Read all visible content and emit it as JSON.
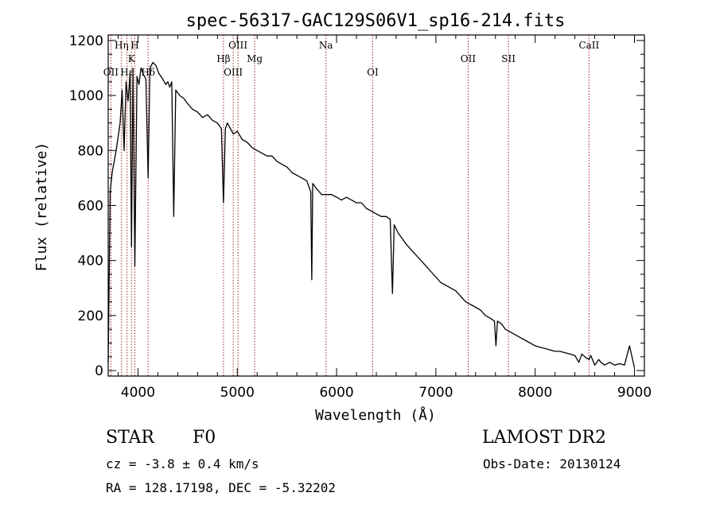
{
  "chart_data": {
    "type": "line",
    "title": "spec-56317-GAC129S06V1_sp16-214.fits",
    "xlabel": "Wavelength (Å)",
    "ylabel": "Flux (relative)",
    "xlim": [
      3700,
      9100
    ],
    "ylim": [
      -20,
      1220
    ],
    "x_ticks": [
      4000,
      5000,
      6000,
      7000,
      8000,
      9000
    ],
    "y_ticks": [
      0,
      200,
      400,
      600,
      800,
      1000,
      1200
    ],
    "line_color": "#000000",
    "marker_color": "#aa2222",
    "spectral_lines": [
      {
        "label": "Hη",
        "wave": 3835,
        "row": 1
      },
      {
        "label": "H",
        "wave": 3968,
        "row": 1
      },
      {
        "label": "OII",
        "wave": 3727,
        "row": 3
      },
      {
        "label": "Hε",
        "wave": 3889,
        "row": 3
      },
      {
        "label": "K",
        "wave": 3934,
        "row": 2
      },
      {
        "label": "Hδ",
        "wave": 4102,
        "row": 3
      },
      {
        "label": "OIII",
        "wave": 5007,
        "row": 1
      },
      {
        "label": "Hβ",
        "wave": 4861,
        "row": 2
      },
      {
        "label": "OIII",
        "wave": 4959,
        "row": 3
      },
      {
        "label": "Mg",
        "wave": 5175,
        "row": 2
      },
      {
        "label": "Na",
        "wave": 5893,
        "row": 1
      },
      {
        "label": "OI",
        "wave": 6364,
        "row": 3
      },
      {
        "label": "OII",
        "wave": 7325,
        "row": 2
      },
      {
        "label": "SII",
        "wave": 7731,
        "row": 2
      },
      {
        "label": "CaII",
        "wave": 8542,
        "row": 1
      }
    ],
    "series": [
      {
        "x": [
          3700,
          3720,
          3740,
          3760,
          3780,
          3800,
          3820,
          3840,
          3860,
          3880,
          3900,
          3920,
          3935,
          3950,
          3968,
          3990,
          4010,
          4030,
          4050,
          4080,
          4102,
          4120,
          4150,
          4180,
          4210,
          4250,
          4280,
          4300,
          4320,
          4340,
          4360,
          4380,
          4420,
          4460,
          4500,
          4550,
          4600,
          4650,
          4700,
          4750,
          4800,
          4840,
          4861,
          4880,
          4900,
          4930,
          4960,
          5000,
          5050,
          5100,
          5150,
          5200,
          5250,
          5300,
          5350,
          5400,
          5450,
          5500,
          5550,
          5600,
          5650,
          5700,
          5740,
          5750,
          5760,
          5800,
          5850,
          5900,
          5950,
          6000,
          6050,
          6100,
          6150,
          6200,
          6250,
          6300,
          6350,
          6400,
          6450,
          6500,
          6540,
          6563,
          6580,
          6620,
          6660,
          6700,
          6750,
          6800,
          6850,
          6900,
          6950,
          7000,
          7050,
          7100,
          7150,
          7200,
          7250,
          7300,
          7350,
          7400,
          7450,
          7500,
          7550,
          7590,
          7605,
          7620,
          7660,
          7700,
          7750,
          7800,
          7850,
          7900,
          7950,
          8000,
          8050,
          8100,
          8150,
          8200,
          8250,
          8300,
          8350,
          8400,
          8440,
          8470,
          8500,
          8542,
          8560,
          8600,
          8640,
          8662,
          8700,
          8750,
          8800,
          8850,
          8900,
          8950,
          9000
        ],
        "y": [
          30,
          650,
          720,
          760,
          800,
          850,
          900,
          1020,
          800,
          1050,
          980,
          1080,
          450,
          1100,
          380,
          1070,
          1040,
          1100,
          1080,
          1060,
          700,
          1100,
          1120,
          1110,
          1080,
          1060,
          1040,
          1050,
          1030,
          1050,
          560,
          1020,
          1000,
          990,
          970,
          950,
          940,
          920,
          930,
          910,
          900,
          880,
          610,
          880,
          900,
          880,
          860,
          870,
          840,
          830,
          810,
          800,
          790,
          780,
          780,
          760,
          750,
          740,
          720,
          710,
          700,
          690,
          650,
          330,
          680,
          660,
          640,
          640,
          640,
          630,
          620,
          630,
          620,
          610,
          610,
          590,
          580,
          570,
          560,
          560,
          550,
          280,
          530,
          500,
          480,
          460,
          440,
          420,
          400,
          380,
          360,
          340,
          320,
          310,
          300,
          290,
          270,
          250,
          240,
          230,
          220,
          200,
          190,
          180,
          90,
          180,
          170,
          150,
          140,
          130,
          120,
          110,
          100,
          90,
          85,
          80,
          75,
          70,
          70,
          65,
          60,
          55,
          30,
          60,
          50,
          40,
          55,
          20,
          40,
          30,
          20,
          30,
          20,
          25,
          20,
          90,
          10
        ]
      }
    ]
  },
  "labels": {
    "object_class": "STAR",
    "subclass": "F0",
    "survey": "LAMOST DR2",
    "cz": "cz = -3.8 ± 0.4 km/s",
    "obs_date": "Obs-Date: 20130124",
    "coords": "RA = 128.17198, DEC =  -5.32202"
  }
}
